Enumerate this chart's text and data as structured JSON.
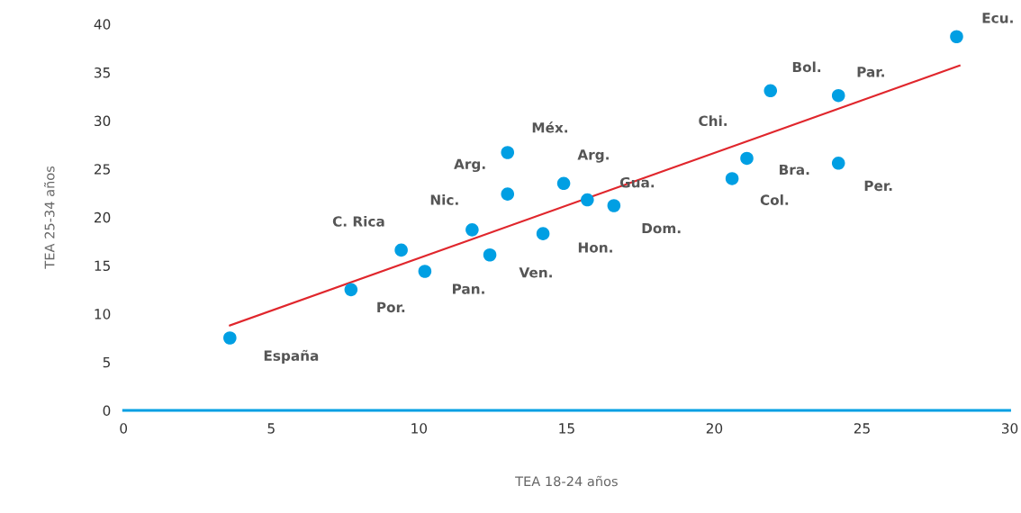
{
  "chart_data": {
    "type": "scatter",
    "xlabel": "TEA 18-24 años",
    "ylabel": "TEA 25-34 años",
    "xlim": [
      0,
      30
    ],
    "xticks": [
      0,
      5,
      10,
      15,
      20,
      25,
      30
    ],
    "ylim": [
      0,
      40
    ],
    "yticks": [
      0,
      5,
      10,
      15,
      20,
      25,
      30,
      35,
      40
    ],
    "grid": false,
    "series": [
      {
        "marker": "circle",
        "color": "#009fe3",
        "x": [
          3.6,
          7.7,
          9.4,
          10.2,
          11.8,
          12.4,
          13.0,
          13.0,
          14.2,
          14.9,
          15.7,
          16.6,
          20.6,
          21.1,
          21.9,
          24.2,
          24.2,
          28.2
        ],
        "values": [
          7.5,
          12.5,
          16.6,
          14.4,
          18.7,
          16.1,
          22.4,
          26.7,
          18.3,
          23.5,
          21.8,
          21.2,
          24.0,
          26.1,
          33.1,
          32.6,
          25.6,
          38.7
        ]
      },
      {
        "type": "line",
        "color": "#e0262c",
        "x": [
          3.6,
          28.3
        ],
        "values": [
          8.8,
          35.7
        ]
      }
    ],
    "annotations": [
      {
        "text": "España",
        "x": 3.6,
        "y": 7.5
      },
      {
        "text": "Por.",
        "x": 7.7,
        "y": 12.5
      },
      {
        "text": "C. Rica",
        "x": 9.4,
        "y": 16.6
      },
      {
        "text": "Pan.",
        "x": 10.2,
        "y": 14.4
      },
      {
        "text": "Nic.",
        "x": 11.8,
        "y": 18.7
      },
      {
        "text": "Ven.",
        "x": 12.4,
        "y": 16.1
      },
      {
        "text": "Arg.",
        "x": 13.0,
        "y": 22.4
      },
      {
        "text": "Méx.",
        "x": 13.0,
        "y": 26.7
      },
      {
        "text": "Hon.",
        "x": 14.2,
        "y": 18.3
      },
      {
        "text": "Arg.",
        "x": 14.9,
        "y": 23.5
      },
      {
        "text": "Gua.",
        "x": 15.7,
        "y": 21.8
      },
      {
        "text": "Dom.",
        "x": 16.6,
        "y": 21.2
      },
      {
        "text": "Col.",
        "x": 20.6,
        "y": 24.0
      },
      {
        "text": "Chi.",
        "x": 21.1,
        "y": 26.1
      },
      {
        "text": "Bra.",
        "x": 21.1,
        "y": 26.1
      },
      {
        "text": "Bol.",
        "x": 21.9,
        "y": 33.1
      },
      {
        "text": "Par.",
        "x": 24.2,
        "y": 32.6
      },
      {
        "text": "Per.",
        "x": 24.2,
        "y": 25.6
      },
      {
        "text": "Ecu.",
        "x": 28.2,
        "y": 38.7
      }
    ]
  }
}
